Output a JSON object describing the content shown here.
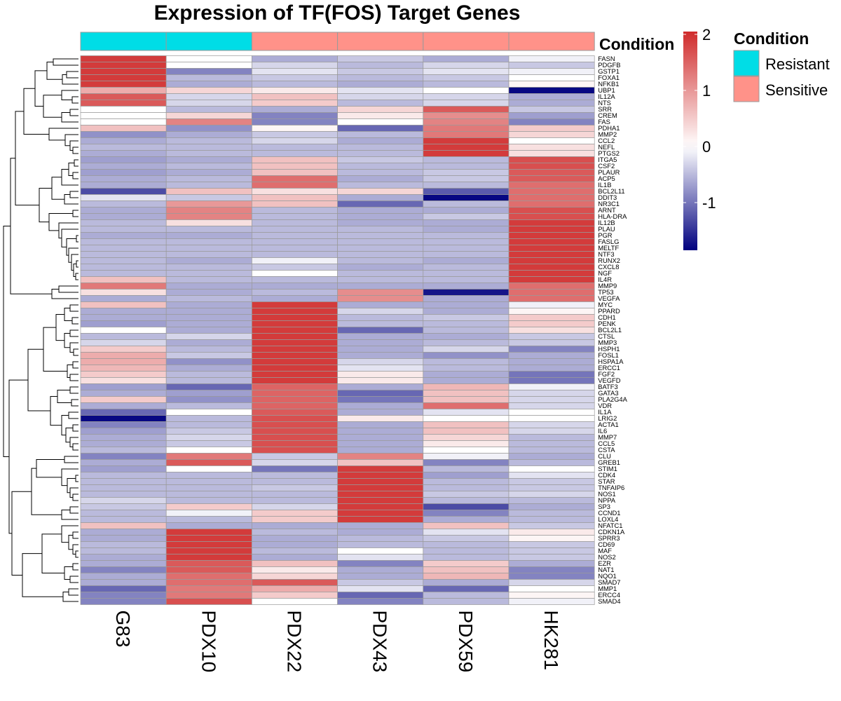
{
  "chart_data": {
    "type": "heatmap",
    "title": "Expression of TF(FOS) Target Genes",
    "columns": [
      "G83",
      "PDX10",
      "PDX22",
      "PDX43",
      "PDX59",
      "HK281"
    ],
    "annotation": {
      "label": "Condition",
      "values": [
        "Resistant",
        "Resistant",
        "Sensitive",
        "Sensitive",
        "Sensitive",
        "Sensitive"
      ],
      "legend": [
        {
          "name": "Resistant",
          "color": "#00DDE6"
        },
        {
          "name": "Sensitive",
          "color": "#FF9289"
        }
      ]
    },
    "color_scale": {
      "low": "#00007F",
      "mid": "#FFFFFF",
      "high": "#D02B2B",
      "min": -1.85,
      "max": 2.05,
      "ticks": [
        {
          "value": 2,
          "label": "2"
        },
        {
          "value": 1,
          "label": "1"
        },
        {
          "value": 0,
          "label": "0"
        },
        {
          "value": -1,
          "label": "-1"
        }
      ]
    },
    "genes": [
      "FASN",
      "PDGFB",
      "GSTP1",
      "FOXA1",
      "NFKB1",
      "UBP1",
      "IL12A",
      "NTS",
      "SRR",
      "CREM",
      "FAS",
      "PDHA1",
      "MMP2",
      "CCL2",
      "NEFL",
      "PTGS2",
      "ITGA5",
      "CSF2",
      "PLAUR",
      "ACP5",
      "IL1B",
      "BCL2L11",
      "DDIT3",
      "NR3C1",
      "ARNT",
      "HLA-DRA",
      "IL12B",
      "PLAU",
      "PGR",
      "FASLG",
      "MELTF",
      "NTF3",
      "RUNX2",
      "CXCL8",
      "NGF",
      "IL4R",
      "MMP9",
      "TP53",
      "VEGFA",
      "MYC",
      "PPARD",
      "CDH1",
      "PENK",
      "BCL2L1",
      "CTSL",
      "MMP3",
      "HSPH1",
      "FOSL1",
      "HSPA1A",
      "ERCC1",
      "FGF2",
      "VEGFD",
      "BATF3",
      "GATA3",
      "PLA2G4A",
      "VDR",
      "IL1A",
      "LRIG2",
      "ACTA1",
      "IL6",
      "MMP7",
      "CCL5",
      "CSTA",
      "CLU",
      "GREB1",
      "STIM1",
      "CDK4",
      "STAR",
      "TNFAIP6",
      "NOS1",
      "NPPA",
      "SP3",
      "CCND1",
      "LOXL4",
      "NFATC1",
      "CDKN1A",
      "SPRR3",
      "CD69",
      "MAF",
      "NOS2",
      "EZR",
      "NAT1",
      "NQO1",
      "SMAD7",
      "MMP1",
      "ERCC4",
      "SMAD4"
    ],
    "values": [
      [
        1.9,
        0.0,
        -0.6,
        -0.4,
        -0.6,
        -0.1
      ],
      [
        1.9,
        0.0,
        -0.3,
        -0.5,
        -0.3,
        -0.4
      ],
      [
        1.9,
        -0.9,
        -0.2,
        -0.4,
        -0.2,
        -0.1
      ],
      [
        1.9,
        -0.5,
        -0.4,
        -0.5,
        -0.4,
        0.0
      ],
      [
        1.9,
        -0.6,
        -0.5,
        -0.6,
        -0.5,
        0.1
      ],
      [
        0.8,
        0.4,
        0.2,
        -0.2,
        0.0,
        -1.8
      ],
      [
        1.6,
        -0.3,
        0.6,
        -0.3,
        -0.3,
        -0.6
      ],
      [
        1.6,
        -0.3,
        0.5,
        -0.5,
        -0.3,
        -0.6
      ],
      [
        0.0,
        -0.5,
        -0.6,
        0.4,
        1.6,
        -0.4
      ],
      [
        0.0,
        0.4,
        -0.9,
        0.2,
        1.1,
        -0.7
      ],
      [
        0.0,
        1.2,
        -0.9,
        0.0,
        1.2,
        -0.9
      ],
      [
        0.6,
        -0.8,
        0.1,
        -1.1,
        1.3,
        0.5
      ],
      [
        -0.8,
        -0.6,
        -0.4,
        -0.5,
        1.3,
        0.4
      ],
      [
        -0.6,
        -0.5,
        -0.3,
        -0.6,
        1.9,
        0.0
      ],
      [
        -0.5,
        -0.5,
        -0.5,
        -0.5,
        1.9,
        0.3
      ],
      [
        -0.6,
        -0.5,
        -0.5,
        -0.5,
        1.9,
        0.3
      ],
      [
        -0.7,
        -0.6,
        0.6,
        -0.4,
        -0.5,
        1.7
      ],
      [
        -0.6,
        -0.5,
        0.6,
        -0.5,
        -0.5,
        1.7
      ],
      [
        -0.7,
        -0.6,
        0.6,
        -0.5,
        -0.4,
        1.6
      ],
      [
        -0.6,
        -0.5,
        1.4,
        -0.6,
        -0.4,
        1.6
      ],
      [
        -0.6,
        -0.5,
        1.4,
        -0.5,
        -0.5,
        1.4
      ],
      [
        -1.3,
        0.6,
        0.3,
        0.4,
        -1.2,
        1.4
      ],
      [
        -0.2,
        -0.4,
        0.6,
        -0.6,
        -1.8,
        1.4
      ],
      [
        -0.5,
        1.0,
        0.6,
        -1.1,
        -0.5,
        1.4
      ],
      [
        -0.6,
        1.2,
        -0.5,
        -0.6,
        -0.6,
        1.7
      ],
      [
        -0.6,
        1.2,
        -0.5,
        -0.6,
        -0.4,
        1.7
      ],
      [
        -0.5,
        0.3,
        -0.5,
        -0.6,
        -0.6,
        1.9
      ],
      [
        -0.5,
        -0.5,
        -0.5,
        -0.5,
        -0.6,
        1.9
      ],
      [
        -0.6,
        -0.6,
        -0.5,
        -0.5,
        -0.5,
        1.9
      ],
      [
        -0.5,
        -0.5,
        -0.5,
        -0.5,
        -0.5,
        1.9
      ],
      [
        -0.5,
        -0.5,
        -0.5,
        -0.5,
        -0.5,
        1.9
      ],
      [
        -0.5,
        -0.5,
        -0.5,
        -0.5,
        -0.5,
        1.9
      ],
      [
        -0.5,
        -0.6,
        -0.1,
        -0.5,
        -0.6,
        1.9
      ],
      [
        -0.5,
        -0.5,
        -0.4,
        -0.6,
        -0.5,
        1.9
      ],
      [
        -0.5,
        -0.5,
        0.0,
        -0.5,
        -0.5,
        1.9
      ],
      [
        0.6,
        -0.5,
        -0.5,
        -0.5,
        -0.5,
        1.9
      ],
      [
        1.3,
        -0.6,
        -0.6,
        -0.6,
        -0.6,
        1.4
      ],
      [
        0.3,
        -0.6,
        -0.5,
        1.1,
        -1.7,
        1.4
      ],
      [
        -0.6,
        -0.5,
        -0.6,
        1.1,
        -0.6,
        1.4
      ],
      [
        0.6,
        -0.6,
        1.9,
        -0.6,
        -0.6,
        -0.1
      ],
      [
        -0.6,
        -0.6,
        1.9,
        -0.3,
        -0.6,
        0.1
      ],
      [
        -0.6,
        -0.6,
        1.9,
        -0.5,
        -0.4,
        0.5
      ],
      [
        -0.7,
        -0.6,
        1.9,
        -0.5,
        -0.5,
        0.5
      ],
      [
        0.0,
        -0.6,
        1.9,
        -1.1,
        -0.5,
        0.3
      ],
      [
        -0.5,
        -0.3,
        1.9,
        -0.6,
        -0.6,
        -0.4
      ],
      [
        -0.3,
        -0.6,
        1.9,
        -0.6,
        -0.5,
        -0.4
      ],
      [
        0.5,
        -0.5,
        1.9,
        -0.6,
        -0.3,
        -0.9
      ],
      [
        0.8,
        -0.4,
        1.9,
        -0.6,
        -0.8,
        -0.6
      ],
      [
        0.8,
        -0.8,
        1.9,
        -0.3,
        -0.5,
        -0.6
      ],
      [
        0.7,
        -0.6,
        1.9,
        -0.2,
        -0.5,
        -0.6
      ],
      [
        0.5,
        -0.5,
        1.9,
        0.2,
        -0.6,
        -1.0
      ],
      [
        0.3,
        -0.5,
        1.9,
        0.2,
        -0.6,
        -1.0
      ],
      [
        -0.7,
        -1.1,
        1.5,
        -0.6,
        0.7,
        -0.1
      ],
      [
        -0.6,
        -0.7,
        1.5,
        -1.1,
        0.6,
        -0.3
      ],
      [
        0.5,
        -0.8,
        1.5,
        -1.0,
        0.6,
        -0.3
      ],
      [
        -0.6,
        -0.5,
        1.5,
        -0.6,
        1.4,
        -0.3
      ],
      [
        -1.1,
        0.0,
        1.6,
        -0.6,
        -0.2,
        0.0
      ],
      [
        -1.8,
        -0.5,
        1.7,
        0.2,
        0.0,
        0.0
      ],
      [
        -0.9,
        -0.5,
        1.7,
        -0.6,
        0.6,
        -0.3
      ],
      [
        -0.7,
        -0.4,
        1.7,
        -0.6,
        0.6,
        -0.3
      ],
      [
        -0.6,
        -0.3,
        1.7,
        -0.6,
        0.4,
        -0.5
      ],
      [
        -0.6,
        -0.4,
        1.7,
        -0.6,
        0.2,
        -0.5
      ],
      [
        -0.5,
        0.0,
        1.7,
        -0.6,
        0.0,
        -0.5
      ],
      [
        -0.9,
        1.3,
        -0.4,
        1.2,
        -0.1,
        -0.6
      ],
      [
        -0.6,
        1.6,
        -0.3,
        0.6,
        -0.9,
        -0.5
      ],
      [
        -0.7,
        0.0,
        -1.0,
        1.9,
        -0.5,
        0.0
      ],
      [
        -0.5,
        -0.5,
        -0.5,
        1.9,
        -0.7,
        -0.2
      ],
      [
        -0.5,
        -0.5,
        -0.5,
        1.9,
        -0.5,
        -0.4
      ],
      [
        -0.5,
        -0.5,
        -0.4,
        1.9,
        -0.5,
        -0.4
      ],
      [
        -0.5,
        -0.5,
        -0.5,
        1.9,
        -0.4,
        -0.3
      ],
      [
        -0.3,
        -0.5,
        -0.5,
        1.9,
        -0.5,
        -0.5
      ],
      [
        -0.4,
        0.5,
        -0.3,
        1.9,
        -1.3,
        -0.6
      ],
      [
        -0.5,
        -0.1,
        0.5,
        1.9,
        -0.9,
        -0.5
      ],
      [
        -0.5,
        -0.5,
        0.5,
        1.9,
        -0.6,
        -0.5
      ],
      [
        0.6,
        -0.6,
        -0.6,
        -0.6,
        0.6,
        -0.4
      ],
      [
        -0.6,
        1.9,
        -0.5,
        -0.6,
        -0.2,
        0.2
      ],
      [
        -0.6,
        1.9,
        -0.6,
        -0.5,
        -0.4,
        0.1
      ],
      [
        -0.5,
        1.9,
        -0.6,
        -0.5,
        -0.5,
        -0.4
      ],
      [
        -0.5,
        1.9,
        -0.5,
        0.0,
        -0.5,
        -0.4
      ],
      [
        -0.6,
        1.9,
        -0.6,
        -0.2,
        -0.5,
        -0.4
      ],
      [
        -0.6,
        1.6,
        0.6,
        -0.9,
        0.5,
        -0.6
      ],
      [
        -0.9,
        1.6,
        0.2,
        -0.6,
        0.6,
        -0.9
      ],
      [
        -0.6,
        1.4,
        0.4,
        -0.6,
        0.7,
        -0.9
      ],
      [
        -0.6,
        1.4,
        1.6,
        -0.4,
        -0.6,
        -0.3
      ],
      [
        -1.1,
        1.3,
        0.8,
        -0.2,
        -1.1,
        0.0
      ],
      [
        -0.9,
        1.3,
        0.5,
        -1.1,
        -0.5,
        0.1
      ],
      [
        -0.9,
        1.7,
        0.0,
        -0.9,
        -0.5,
        -0.1
      ]
    ]
  }
}
